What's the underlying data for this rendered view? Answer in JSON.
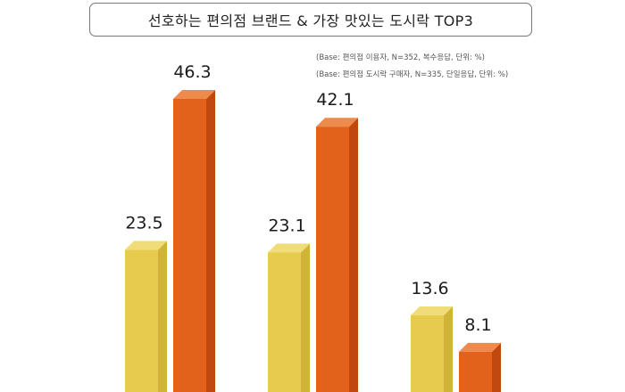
{
  "title": "선호하는 편의점 브랜드 & 가장 맛있는 도시락 TOP3",
  "notes": [
    "(Base: 편의점 이용자, N=352, 복수응답, 단위: %)",
    "(Base: 편의점 도시락 구매자, N=335, 단일응답, 단위: %)"
  ],
  "colors": {
    "series1_front": "#E6CB4C",
    "series1_side": "#D1B33A",
    "series1_top": "#F0DC78",
    "series2_front": "#E2611B",
    "series2_side": "#C2490E",
    "series2_top": "#EE8A4C"
  },
  "chart_data": {
    "type": "bar",
    "title": "선호하는 편의점 브랜드 & 가장 맛있는 도시락 TOP3",
    "categories": [
      "",
      "",
      ""
    ],
    "series": [
      {
        "values": [
          23.5,
          23.1,
          13.6
        ]
      },
      {
        "values": [
          46.3,
          42.1,
          8.1
        ]
      }
    ],
    "ylim": [
      0,
      55
    ]
  }
}
